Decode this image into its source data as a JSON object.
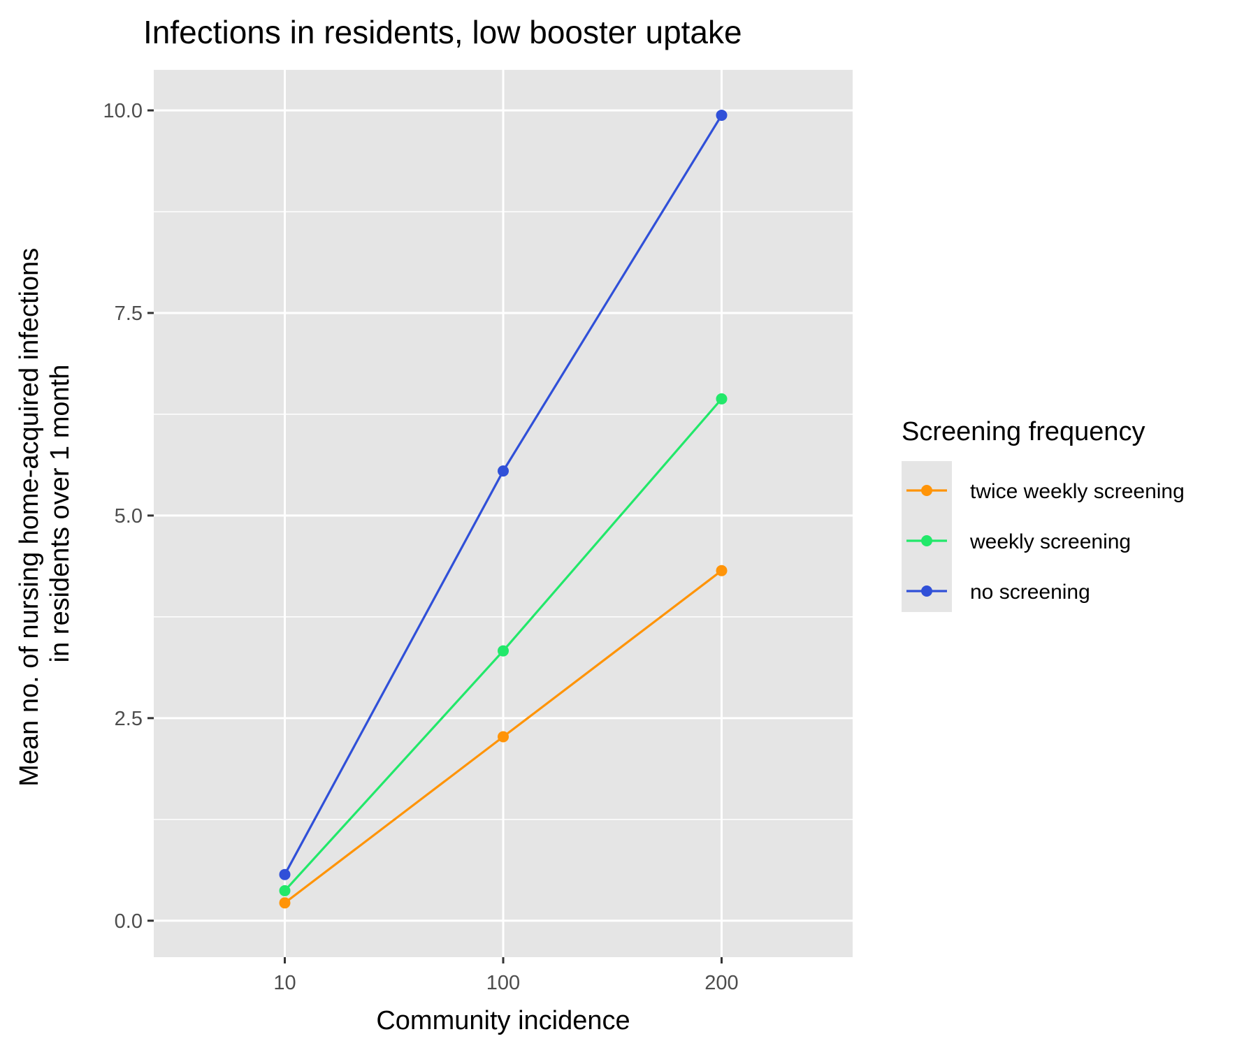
{
  "chart_data": {
    "type": "line",
    "title": "Infections in residents, low booster uptake",
    "xlabel": "Community incidence",
    "ylabel_lines": [
      "Mean no. of nursing home-acquired infections",
      "in residents over 1 month"
    ],
    "categories": [
      "10",
      "100",
      "200"
    ],
    "ylim": [
      -0.45,
      10.5
    ],
    "yticks": [
      0.0,
      2.5,
      5.0,
      7.5,
      10.0
    ],
    "ytick_labels": [
      "0.0",
      "2.5",
      "5.0",
      "7.5",
      "10.0"
    ],
    "grid": true,
    "legend_title": "Screening frequency",
    "legend_position": "right",
    "series": [
      {
        "name": "twice weekly screening",
        "color": "#FF9408",
        "values": [
          0.22,
          2.27,
          4.32
        ]
      },
      {
        "name": "weekly screening",
        "color": "#22E86A",
        "values": [
          0.37,
          3.33,
          6.44
        ]
      },
      {
        "name": "no screening",
        "color": "#3050D8",
        "values": [
          0.57,
          5.55,
          9.94
        ]
      }
    ]
  }
}
